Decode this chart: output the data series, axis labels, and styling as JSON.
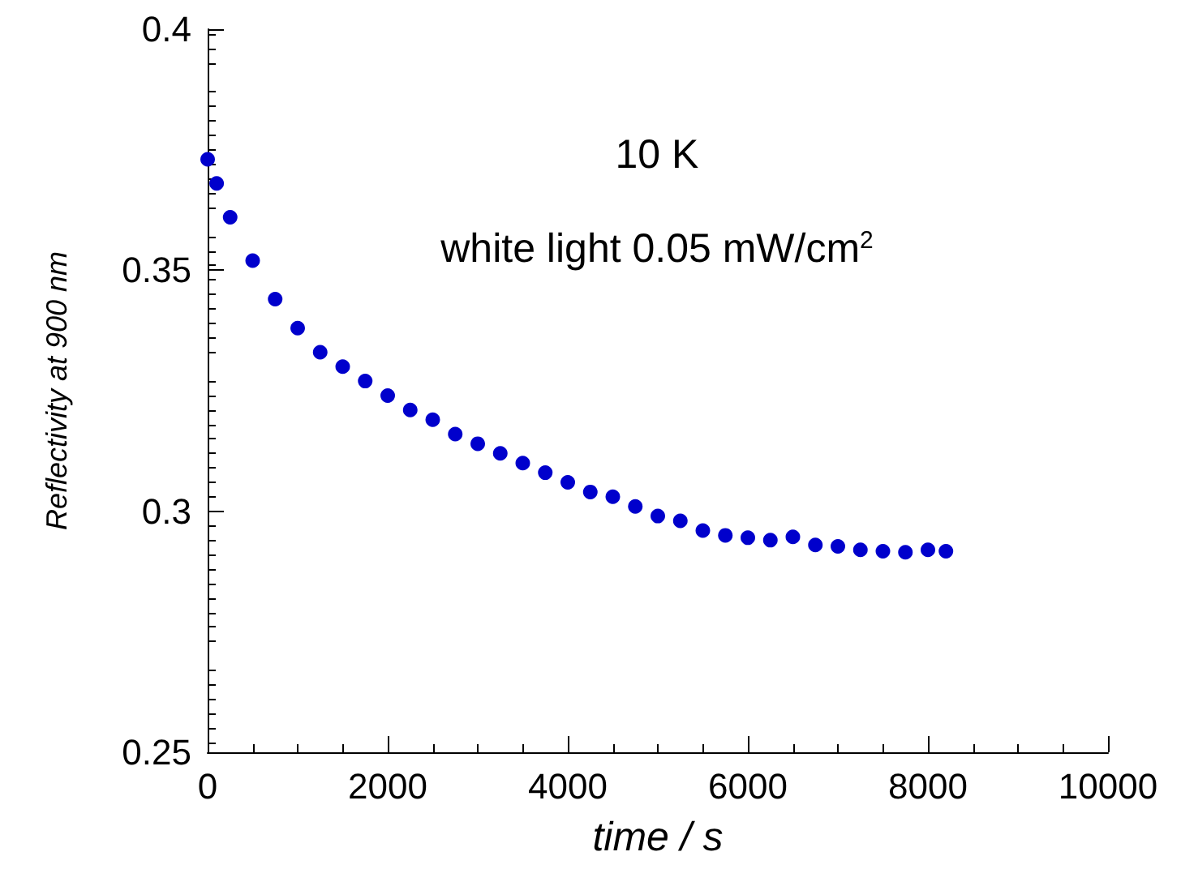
{
  "chart_data": {
    "type": "scatter",
    "xlabel": "time / s",
    "ylabel": "Reflectivity at 900 nm",
    "annotations": [
      "10 K",
      "white light 0.05 mW/cm$^{2}$"
    ],
    "x": [
      0,
      100,
      250,
      500,
      750,
      1000,
      1250,
      1500,
      1750,
      2000,
      2250,
      2500,
      2750,
      3000,
      3250,
      3500,
      3750,
      4000,
      4250,
      4500,
      4750,
      5000,
      5250,
      5500,
      5750,
      6000,
      6250,
      6500,
      6750,
      7000,
      7250,
      7500,
      7750,
      8000,
      8200
    ],
    "series": [
      {
        "color": "#0000cc",
        "values": [
          0.373,
          0.368,
          0.361,
          0.352,
          0.344,
          0.338,
          0.333,
          0.33,
          0.327,
          0.324,
          0.321,
          0.319,
          0.316,
          0.314,
          0.312,
          0.31,
          0.308,
          0.306,
          0.304,
          0.303,
          0.301,
          0.299,
          0.298,
          0.296,
          0.295,
          0.2945,
          0.294,
          0.2947,
          0.293,
          0.2927,
          0.292,
          0.2917,
          0.2915,
          0.292,
          0.2917
        ]
      }
    ],
    "xlim": [
      0,
      10000
    ],
    "xticks": [
      0,
      2000,
      4000,
      6000,
      8000,
      10000
    ],
    "ylim": [
      0.25,
      0.4
    ],
    "yticks": [
      0.25,
      0.3,
      0.35,
      0.4
    ],
    "grid": false,
    "marker": "circle"
  }
}
